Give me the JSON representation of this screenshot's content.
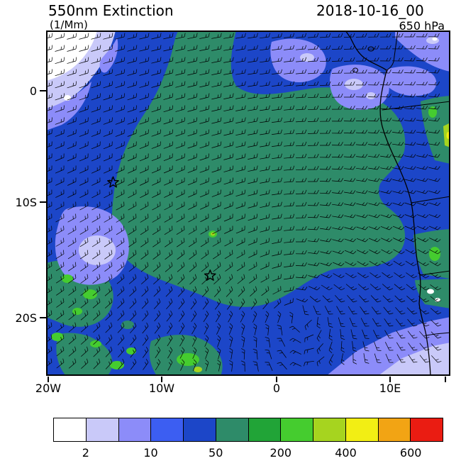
{
  "header": {
    "title": "550nm Extinction",
    "units": "(1/Mm)",
    "datetime": "2018-10-16_00",
    "level": "650 hPa"
  },
  "axes": {
    "y_ticks": [
      "0",
      "10S",
      "20S"
    ],
    "x_ticks": [
      "20W",
      "10W",
      "0",
      "10E"
    ]
  },
  "chart_data": {
    "type": "heatmap",
    "title": "550nm Extinction",
    "variable": "aerosol extinction at 550nm",
    "units": "1/Mm",
    "datetime": "2018-10-16_00",
    "pressure_level": "650 hPa",
    "lon_range": [
      -20,
      15
    ],
    "lat_range": [
      -25,
      5
    ],
    "x_tick_labels": [
      "20W",
      "10W",
      "0",
      "10E"
    ],
    "y_tick_labels": [
      "0",
      "10S",
      "20S"
    ],
    "levels": [
      2,
      5,
      10,
      20,
      50,
      100,
      200,
      300,
      400,
      500,
      600
    ],
    "colorbar_tick_labels": [
      "2",
      "10",
      "50",
      "200",
      "400",
      "600"
    ],
    "palette": [
      "#ffffff",
      "#c9c9f9",
      "#8c8cf9",
      "#3c5ef2",
      "#1c46c8",
      "#2e8b69",
      "#21a437",
      "#45cc2f",
      "#a6d41f",
      "#f2ee14",
      "#f2a414",
      "#ea1c12"
    ],
    "regions": [
      {
        "area": "background ocean over most of domain",
        "value_range": "20-50",
        "color": "#1c46c8"
      },
      {
        "area": "large central smoke plume ~17W-9E, 1S-17S",
        "value_range": "50-200",
        "color": "#2e8b69"
      },
      {
        "area": "northwest corner clean air",
        "value_range": "<2-5",
        "color": "#ffffff"
      },
      {
        "area": "west-central patch ~18W-13W, 11S-16S",
        "value_range": "5-10",
        "color": "#8c8cf9"
      },
      {
        "area": "north-central patches ~0-9E, 2N-4S",
        "value_range": "5-10",
        "color": "#8c8cf9"
      },
      {
        "area": "southeast corner",
        "value_range": "2-10",
        "color": "#8c8cf9"
      },
      {
        "area": "southwest speckled enhanced patches",
        "value_range": "100-300",
        "color": "#45cc2f"
      },
      {
        "area": "Angola coastal strips at right edge",
        "value_range": "200-500",
        "color": "#a6d41f"
      }
    ],
    "markers": [
      {
        "type": "star",
        "lon": -14.2,
        "lat": -8.2
      },
      {
        "type": "star",
        "lon": -5.8,
        "lat": -16.3
      }
    ],
    "wind": {
      "overlay": "wind barbs",
      "pattern": "easterly flow across the north, turning around a closed circulation in the south-central domain",
      "center_lon": 1.8,
      "center_lat": -19.5
    }
  }
}
